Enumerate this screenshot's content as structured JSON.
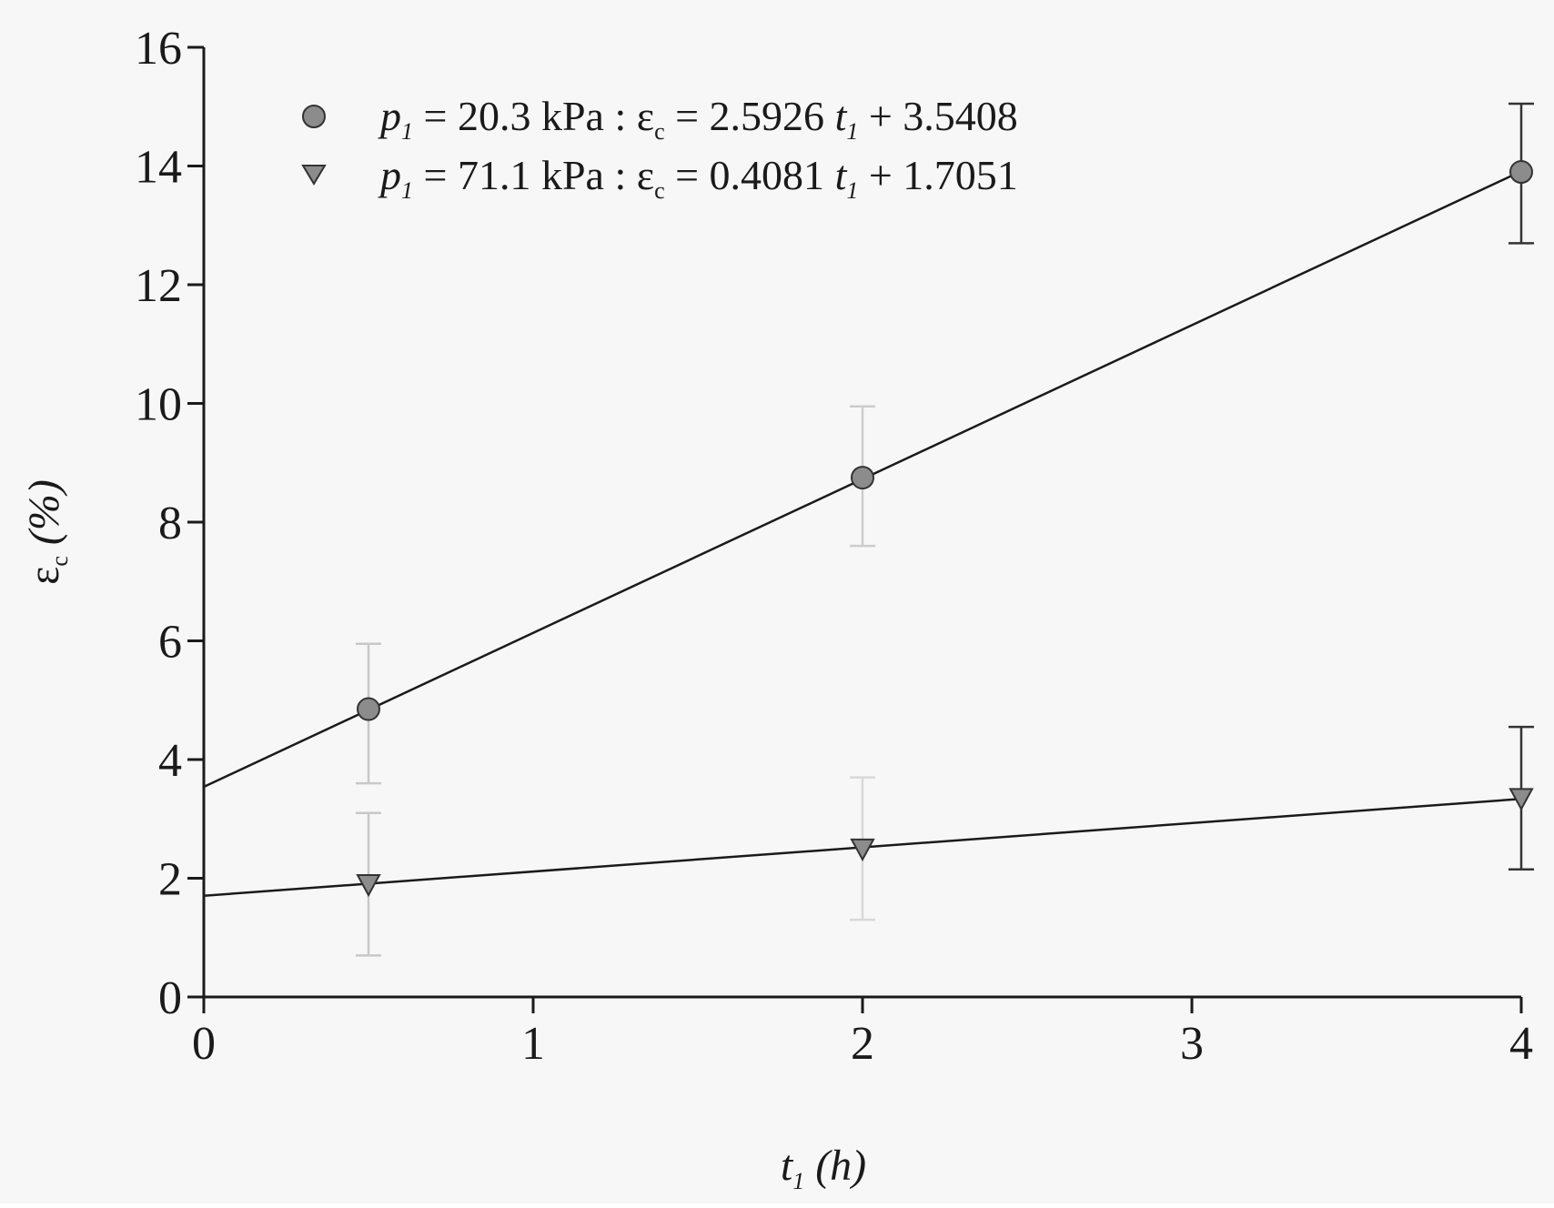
{
  "chart_data": {
    "type": "scatter",
    "title": "",
    "xlabel": "t₁ (h)",
    "ylabel": "εc (%)",
    "xlim": [
      0,
      4
    ],
    "ylim": [
      0,
      16
    ],
    "xticks": [
      0,
      1,
      2,
      3,
      4
    ],
    "yticks": [
      0,
      2,
      4,
      6,
      8,
      10,
      12,
      14,
      16
    ],
    "grid": false,
    "legend_position": "top-left",
    "series": [
      {
        "name": "p₁ = 20.3 kPa : εc = 2.5926 t₁ + 3.5408",
        "marker": "circle",
        "color": "#8c8c8c",
        "x": [
          0.5,
          2,
          4
        ],
        "y": [
          4.85,
          8.75,
          13.9
        ],
        "error_low": [
          3.6,
          7.6,
          12.7
        ],
        "error_high": [
          5.95,
          9.95,
          15.05
        ],
        "error_color": [
          "#c8c8c8",
          "#cccccc",
          "#333333"
        ],
        "fit": {
          "slope": 2.5926,
          "intercept": 3.5408
        }
      },
      {
        "name": "p₁ = 71.1 kPa : εc = 0.4081 t₁ + 1.7051",
        "marker": "triangle-down",
        "color": "#8c8c8c",
        "x": [
          0.5,
          2,
          4
        ],
        "y": [
          1.9,
          2.5,
          3.35
        ],
        "error_low": [
          0.7,
          1.3,
          2.15
        ],
        "error_high": [
          3.1,
          3.7,
          4.55
        ],
        "error_color": [
          "#c8c8c8",
          "#d8d8d8",
          "#333333"
        ],
        "fit": {
          "slope": 0.4081,
          "intercept": 1.7051
        }
      }
    ],
    "legend": [
      {
        "p_label": "p",
        "p_sub": "1",
        "p_value": " = 20.3 kPa : ",
        "eps": "ε",
        "eps_sub": "c",
        "eq": " = 2.5926 ",
        "t": "t",
        "t_sub": "1",
        "rest": " + 3.5408"
      },
      {
        "p_label": "p",
        "p_sub": "1",
        "p_value": " = 71.1 kPa : ",
        "eps": "ε",
        "eps_sub": "c",
        "eq": " = 0.4081 ",
        "t": "t",
        "t_sub": "1",
        "rest": " + 1.7051"
      }
    ],
    "axis_text": {
      "x_main": "t",
      "x_sub": "1",
      "x_unit": " (h)",
      "y_main": "ε",
      "y_sub": "c",
      "y_unit": " (%)"
    }
  }
}
